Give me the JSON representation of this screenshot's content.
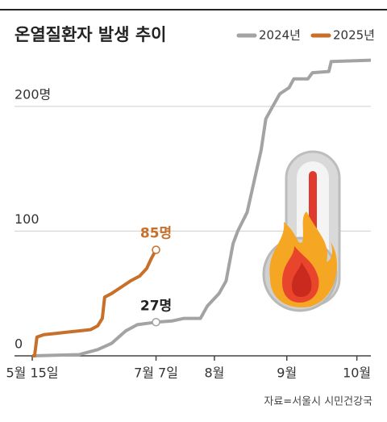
{
  "chart_data": {
    "type": "line",
    "title": "온열질환자 발생 추이",
    "source": "자료=서울시 시민건강국",
    "xlim": [
      0,
      145
    ],
    "xticks": [
      {
        "value": 0,
        "label": "5월 15일"
      },
      {
        "value": 53,
        "label": "7월 7일"
      },
      {
        "value": 78,
        "label": "8월"
      },
      {
        "value": 109,
        "label": "9월"
      },
      {
        "value": 139,
        "label": "10월"
      }
    ],
    "ylim": [
      0,
      240
    ],
    "yticks": [
      0,
      100,
      {
        "value": 200,
        "label": "200명"
      }
    ],
    "grid": true,
    "legend": "top-right",
    "series": [
      {
        "name": "2024년",
        "color": "#a3a3a3",
        "x": [
          0,
          20,
          28,
          34,
          40,
          45,
          53,
          60,
          65,
          72,
          75,
          80,
          83,
          86,
          88,
          92,
          95,
          98,
          100,
          103,
          106,
          110,
          112,
          118,
          120,
          127,
          128,
          145
        ],
        "values": [
          0,
          1,
          5,
          10,
          20,
          25,
          27,
          28,
          30,
          30,
          40,
          50,
          60,
          90,
          100,
          115,
          140,
          165,
          190,
          200,
          210,
          215,
          222,
          222,
          227,
          228,
          236,
          237
        ],
        "value_labels": [
          null,
          null,
          null,
          null,
          null,
          null,
          "27명",
          null,
          null,
          null,
          null,
          null,
          null,
          null,
          null,
          null,
          null,
          null,
          null,
          null,
          null,
          null,
          null,
          null,
          null,
          null,
          null,
          null
        ]
      },
      {
        "name": "2025년",
        "color": "#c8702a",
        "x": [
          0,
          1,
          2,
          5,
          10,
          15,
          20,
          25,
          28,
          30,
          31,
          34,
          38,
          42,
          46,
          49,
          51,
          53
        ],
        "values": [
          0,
          0,
          15,
          17,
          18,
          19,
          20,
          21,
          24,
          30,
          47,
          50,
          55,
          60,
          64,
          70,
          78,
          85
        ],
        "value_labels": [
          null,
          null,
          null,
          null,
          null,
          null,
          null,
          null,
          null,
          null,
          null,
          null,
          null,
          null,
          null,
          null,
          null,
          "85명"
        ]
      }
    ]
  }
}
